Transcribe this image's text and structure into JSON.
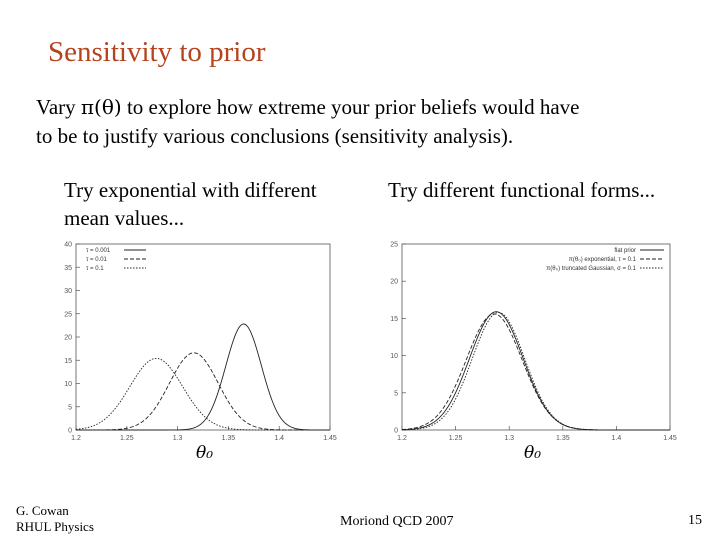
{
  "slide": {
    "title": "Sensitivity to prior",
    "intro_line1_pre": "Vary ",
    "intro_line1_sym": "π(θ)",
    "intro_line1_post": " to explore how extreme your prior beliefs would have",
    "intro_line2": "to be to justify various conclusions (sensitivity analysis).",
    "left_caption_1": "Try exponential with different",
    "left_caption_2": "mean values...",
    "right_caption": "Try different functional forms...",
    "left_xlabel": "θ₀",
    "right_xlabel": "θ₀",
    "footer_author_1": "G. Cowan",
    "footer_author_2": "RHUL Physics",
    "footer_conference": "Moriond QCD 2007",
    "footer_page": "15"
  },
  "chart_data": [
    {
      "type": "line",
      "xlim": [
        1.2,
        1.45
      ],
      "ylim": [
        0,
        40
      ],
      "x_ticks": [
        "1.2",
        "1.25",
        "1.3",
        "1.35",
        "1.4",
        "1.45"
      ],
      "y_ticks": [
        "0",
        "5",
        "10",
        "15",
        "20",
        "25",
        "30",
        "35",
        "40"
      ],
      "legend_position": "top-left",
      "series": [
        {
          "name": "τ = 0.001",
          "style": "solid",
          "mean": 1.365,
          "sigma": 0.0175,
          "peak": 22.8
        },
        {
          "name": "τ = 0.01",
          "style": "dashed",
          "mean": 1.316,
          "sigma": 0.024,
          "peak": 16.6
        },
        {
          "name": "τ = 0.1",
          "style": "dotted",
          "mean": 1.279,
          "sigma": 0.026,
          "peak": 15.4
        }
      ]
    },
    {
      "type": "line",
      "xlim": [
        1.2,
        1.45
      ],
      "ylim": [
        0,
        25
      ],
      "x_ticks": [
        "1.2",
        "1.25",
        "1.3",
        "1.35",
        "1.4",
        "1.45"
      ],
      "y_ticks": [
        "0",
        "5",
        "10",
        "15",
        "20",
        "25"
      ],
      "legend_position": "top-right",
      "series": [
        {
          "name": "flat prior",
          "style": "solid",
          "mean": 1.288,
          "sigma": 0.025,
          "peak": 15.9
        },
        {
          "name": "π(θ₀) exponential, τ = 0.1",
          "style": "dashed",
          "mean": 1.286,
          "sigma": 0.026,
          "peak": 15.6
        },
        {
          "name": "π(θ₀) truncated Gaussian, σ = 0.1",
          "style": "dotted",
          "mean": 1.29,
          "sigma": 0.0245,
          "peak": 15.8
        }
      ]
    }
  ]
}
